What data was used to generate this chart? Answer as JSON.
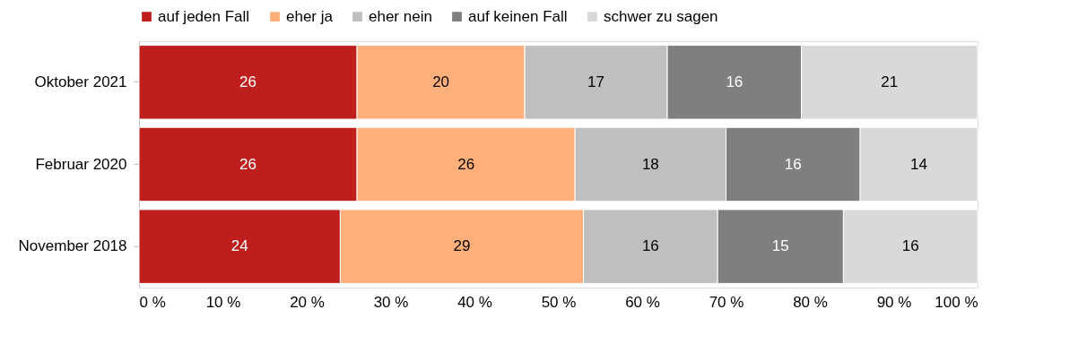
{
  "chart_data": {
    "type": "bar",
    "orientation": "horizontal",
    "stacked": true,
    "categories": [
      "Oktober 2021",
      "Februar 2020",
      "November 2018"
    ],
    "series": [
      {
        "name": "auf jeden Fall",
        "color": "#be1e1e",
        "values": [
          26,
          26,
          24
        ]
      },
      {
        "name": "eher ja",
        "color": "#ffb07a",
        "values": [
          20,
          26,
          29
        ]
      },
      {
        "name": "eher nein",
        "color": "#bfbfbf",
        "values": [
          17,
          18,
          16
        ]
      },
      {
        "name": "auf keinen Fall",
        "color": "#7f7f7f",
        "values": [
          16,
          16,
          15
        ]
      },
      {
        "name": "schwer zu sagen",
        "color": "#d9d9d9",
        "values": [
          21,
          14,
          16
        ]
      }
    ],
    "xlim": [
      0,
      100
    ],
    "xticks": [
      {
        "value": 0,
        "label": "0 %"
      },
      {
        "value": 10,
        "label": "10 %"
      },
      {
        "value": 20,
        "label": "20 %"
      },
      {
        "value": 30,
        "label": "30 %"
      },
      {
        "value": 40,
        "label": "40 %"
      },
      {
        "value": 50,
        "label": "50 %"
      },
      {
        "value": 60,
        "label": "60 %"
      },
      {
        "value": 70,
        "label": "70 %"
      },
      {
        "value": 80,
        "label": "80 %"
      },
      {
        "value": 90,
        "label": "90 %"
      },
      {
        "value": 100,
        "label": "100 %"
      }
    ],
    "data_labels": true,
    "legend": "top",
    "grid": false
  }
}
